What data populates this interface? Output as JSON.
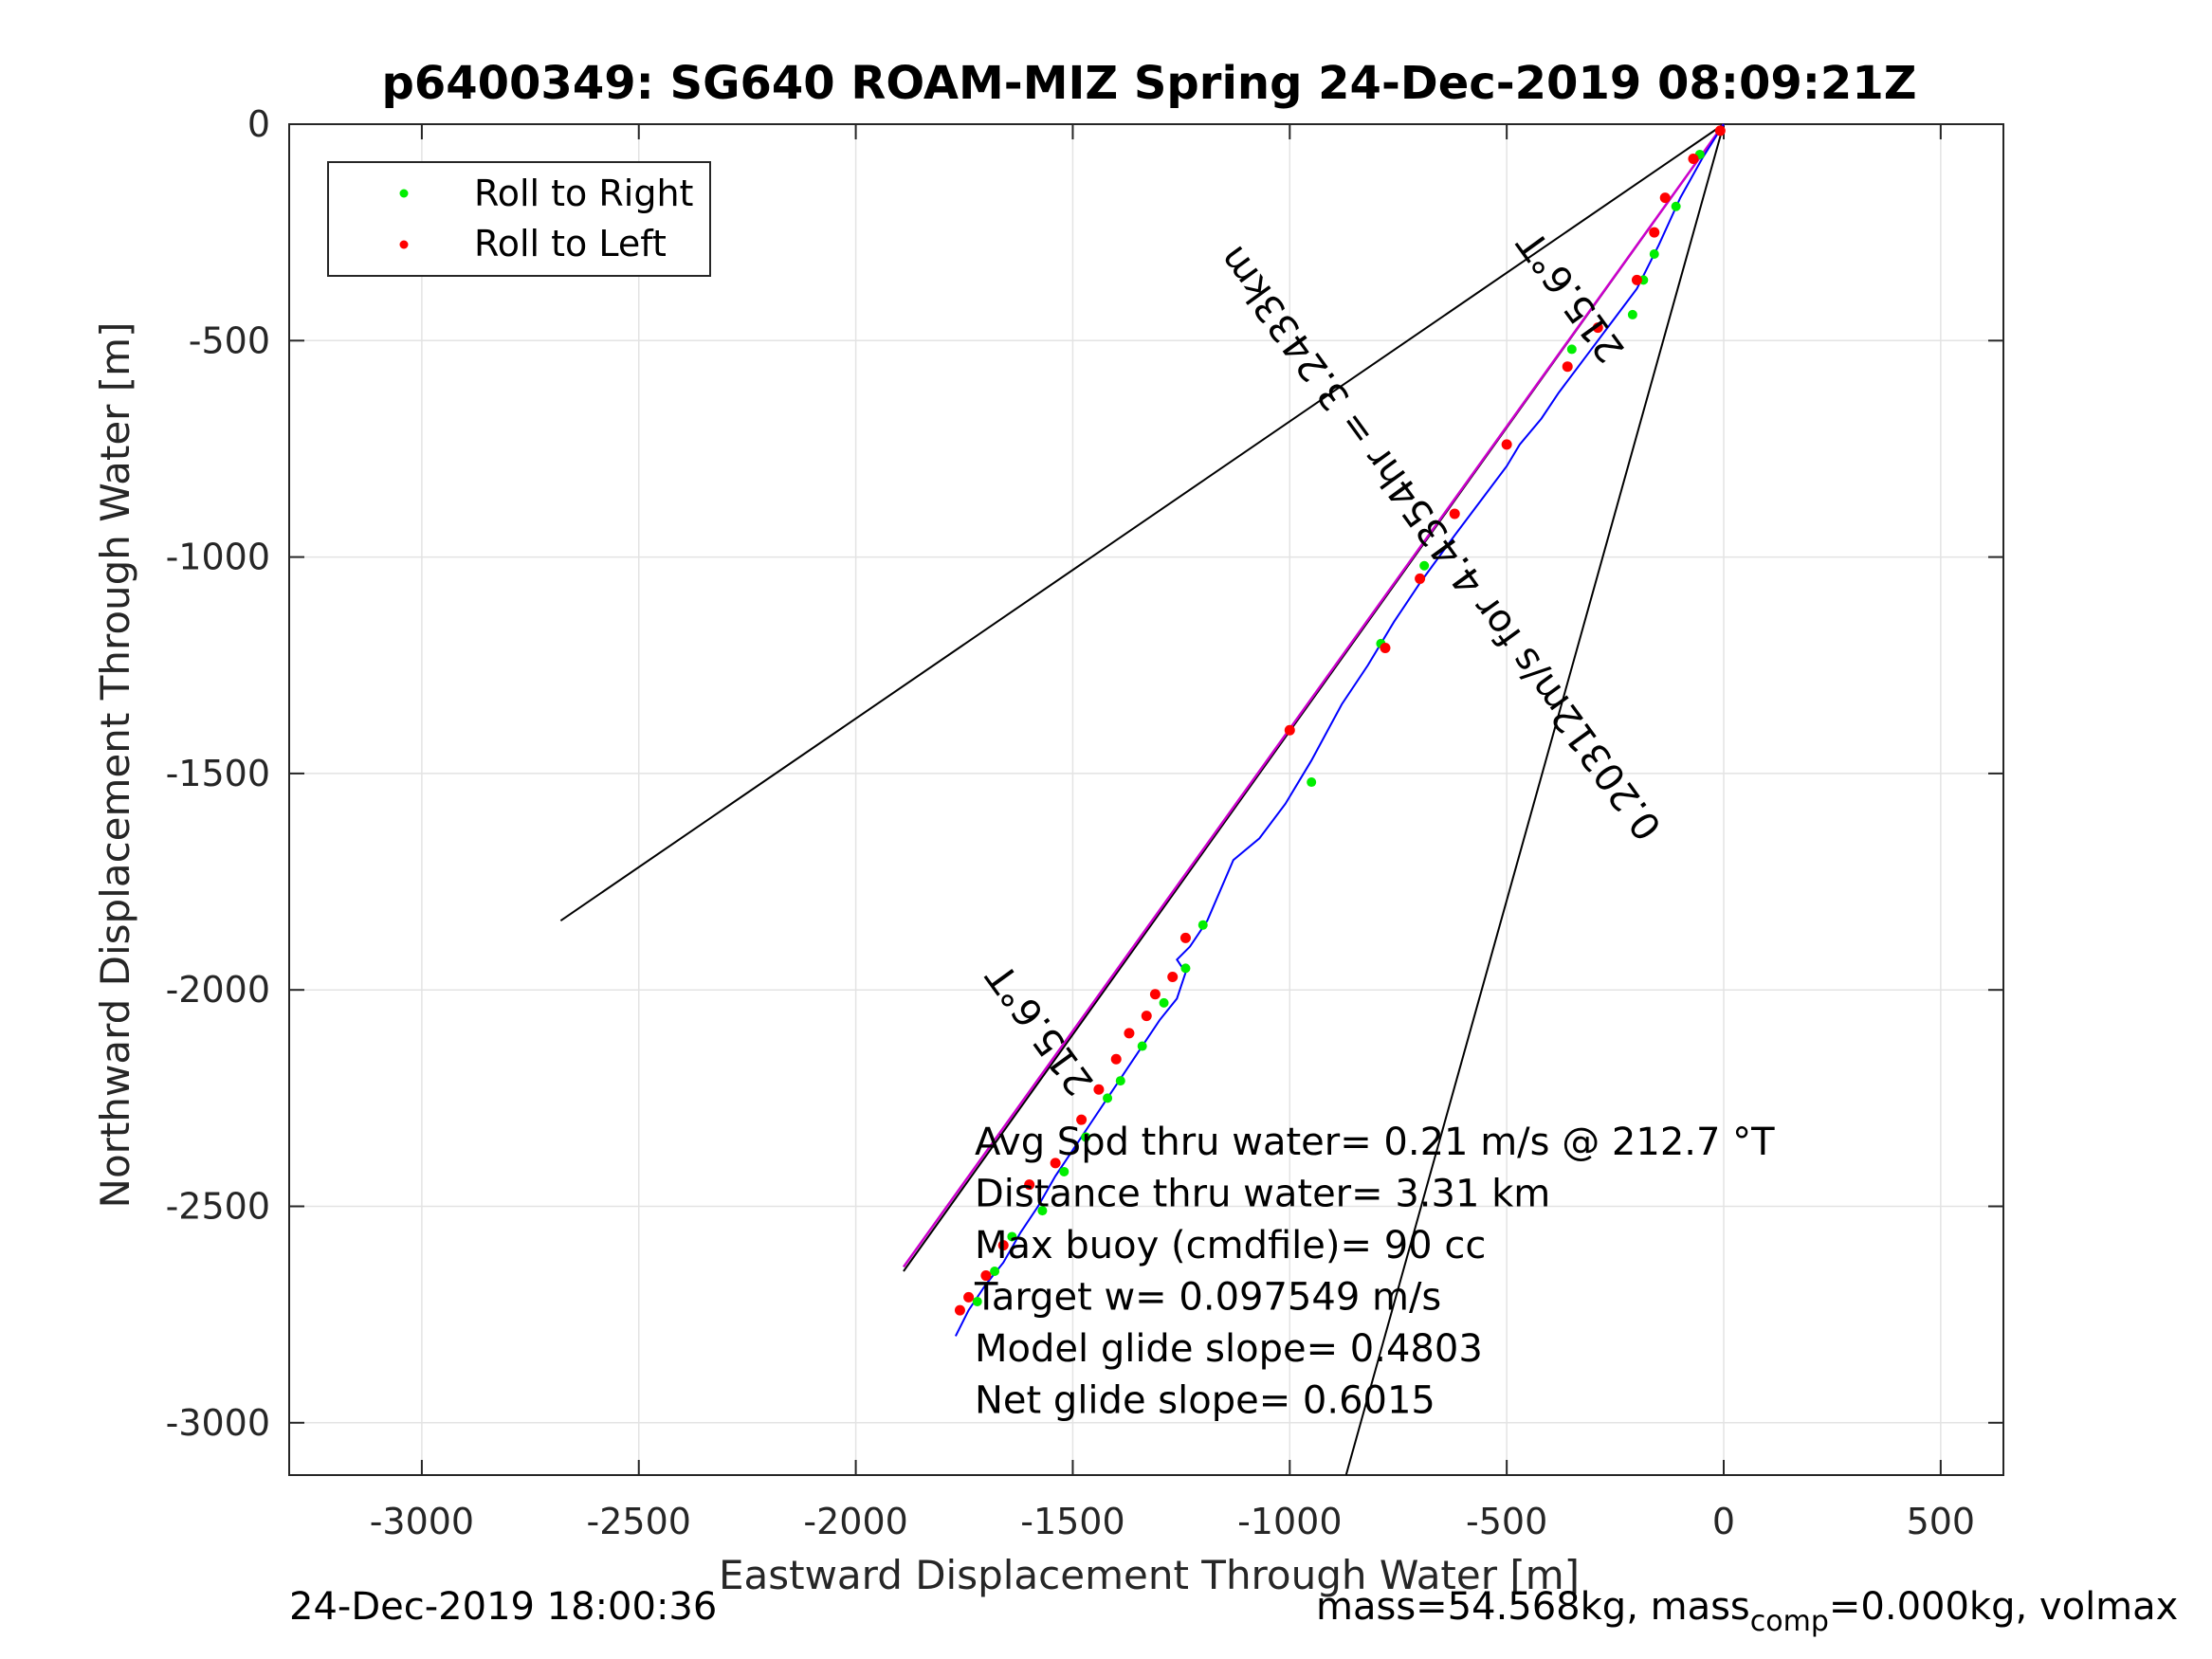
{
  "chart_data": {
    "type": "line",
    "title": "p6400349: SG640 ROAM-MIZ Spring 24-Dec-2019 08:09:21Z",
    "xlabel": "Eastward Displacement Through Water [m]",
    "ylabel": "Northward Displacement Through Water [m]",
    "xlim": [
      -3300,
      650
    ],
    "ylim": [
      -3120,
      0
    ],
    "xticks": [
      -3000,
      -2500,
      -2000,
      -1500,
      -1000,
      -500,
      0,
      500
    ],
    "yticks": [
      0,
      -500,
      -1000,
      -1500,
      -2000,
      -2500,
      -3000
    ],
    "xtick_labels": [
      "-3000",
      "-2500",
      "-2000",
      "-1500",
      "-1000",
      "-500",
      "0",
      "500"
    ],
    "ytick_labels": [
      "0",
      "-500",
      "-1000",
      "-1500",
      "-2000",
      "-2500",
      "-3000"
    ],
    "grid": true,
    "legend": {
      "placement": "top-left",
      "entries": [
        "Roll to Right",
        "Roll to Left"
      ]
    },
    "series": [
      {
        "name": "Roll to Right",
        "color": "#00ee00",
        "x": [
          -55,
          -110,
          -160,
          -185,
          -210,
          -350,
          -690,
          -790,
          -950,
          -1000,
          -1200,
          -1240,
          -1290,
          -1340,
          -1390,
          -1420,
          -1470,
          -1520,
          -1570,
          -1640,
          -1680,
          -1720
        ],
        "y": [
          -70,
          -190,
          -300,
          -360,
          -440,
          -520,
          -1020,
          -1200,
          -1520,
          -1400,
          -1850,
          -1950,
          -2030,
          -2130,
          -2210,
          -2250,
          -2340,
          -2420,
          -2510,
          -2570,
          -2650,
          -2720
        ]
      },
      {
        "name": "Roll to Left",
        "color": "#ff0000",
        "x": [
          -8,
          -70,
          -135,
          -160,
          -200,
          -290,
          -360,
          -500,
          -620,
          -700,
          -780,
          -1000,
          -1240,
          -1270,
          -1310,
          -1330,
          -1370,
          -1400,
          -1440,
          -1480,
          -1540,
          -1600,
          -1660,
          -1700,
          -1740,
          -1760
        ],
        "y": [
          -15,
          -80,
          -170,
          -250,
          -360,
          -470,
          -560,
          -740,
          -900,
          -1050,
          -1210,
          -1400,
          -1880,
          -1970,
          -2010,
          -2060,
          -2100,
          -2160,
          -2230,
          -2300,
          -2400,
          -2450,
          -2590,
          -2660,
          -2710,
          -2740
        ]
      },
      {
        "name": "track",
        "color": "#0000ff",
        "x": [
          0,
          -50,
          -100,
          -150,
          -200,
          -260,
          -320,
          -380,
          -420,
          -470,
          -500,
          -560,
          -620,
          -700,
          -760,
          -820,
          -880,
          -950,
          -1010,
          -1070,
          -1130,
          -1190,
          -1230,
          -1260,
          -1240,
          -1260,
          -1300,
          -1340,
          -1380,
          -1420,
          -1460,
          -1500,
          -1540,
          -1580,
          -1620,
          -1660,
          -1700,
          -1740,
          -1770
        ],
        "y": [
          0,
          -80,
          -170,
          -280,
          -380,
          -460,
          -540,
          -620,
          -680,
          -740,
          -790,
          -870,
          -950,
          -1060,
          -1150,
          -1250,
          -1340,
          -1470,
          -1570,
          -1650,
          -1700,
          -1840,
          -1900,
          -1930,
          -1960,
          -2020,
          -2070,
          -2130,
          -2190,
          -2250,
          -2310,
          -2370,
          -2430,
          -2500,
          -2560,
          -2630,
          -2680,
          -2740,
          -2800
        ]
      },
      {
        "name": "heading",
        "color": "#cc00cc",
        "x": [
          0,
          -1890
        ],
        "y": [
          0,
          -2640
        ]
      }
    ],
    "reference_lines": [
      {
        "x": [
          0,
          -2680
        ],
        "y": [
          0,
          -1840
        ]
      },
      {
        "x": [
          0,
          -1890
        ],
        "y": [
          0,
          -2650
        ]
      },
      {
        "x": [
          0,
          -870
        ],
        "y": [
          0,
          -3120
        ]
      }
    ],
    "annotations": {
      "heading_top": "215.6°T",
      "heading_mid": "215.6°T",
      "current": "0.20312m/s for 4.4354hr = 3.2433km",
      "stats": [
        "Avg Spd thru water=  0.21 m/s @ 212.7 °T",
        "Distance thru water=  3.31 km",
        "Max buoy (cmdfile)= 90 cc",
        "Target w= 0.097549 m/s",
        "Model glide slope= 0.4803",
        "Net glide slope= 0.6015"
      ]
    }
  },
  "footer": {
    "timestamp": "24-Dec-2019 18:00:36",
    "mass_text": "mass=54.568kg, mass",
    "mass_sub": "comp",
    "mass_rest": "=0.000kg, volmax"
  }
}
